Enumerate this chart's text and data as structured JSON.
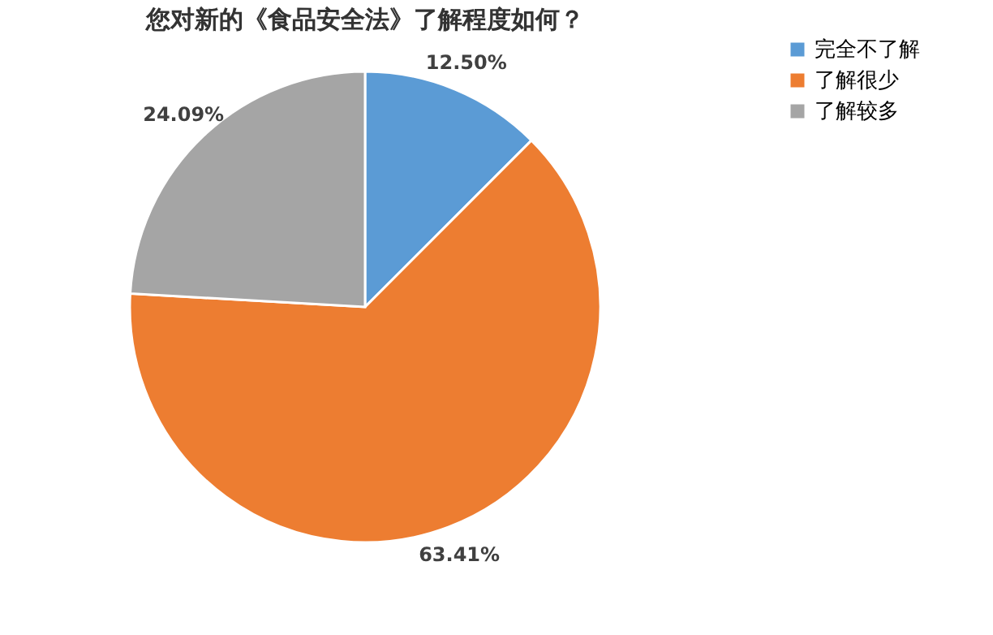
{
  "chart_data": {
    "type": "pie",
    "title": "您对新的《食品安全法》了解程度如何？",
    "categories": [
      "完全不了解",
      "了解很少",
      "了解较多"
    ],
    "values": [
      12.5,
      63.41,
      24.09
    ],
    "colors": [
      "#5b9bd5",
      "#ed7d31",
      "#a5a5a5"
    ],
    "value_labels": [
      "12.50%",
      "63.41%",
      "24.09%"
    ],
    "legend": "right"
  }
}
